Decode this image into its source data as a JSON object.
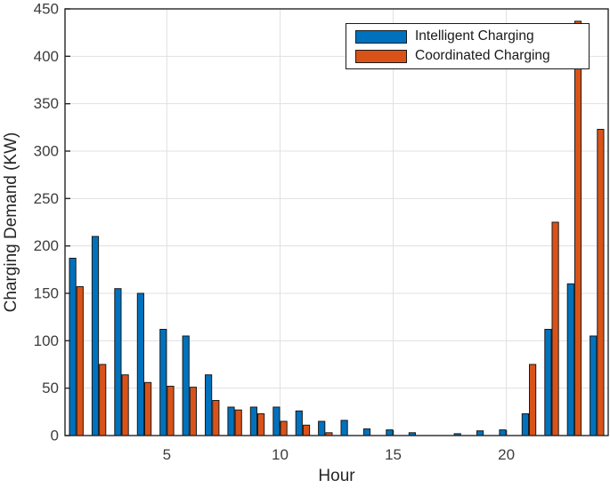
{
  "figure": {
    "background": "#ffffff",
    "axis_color": "#262626",
    "grid_color": "#e0e0e0",
    "bar_edge_color": "#1a1a1a",
    "tick_label_color": "#3d3d3d"
  },
  "legend": {
    "position": "top-right",
    "items": [
      {
        "label": "Intelligent Charging",
        "color": "#0072BD"
      },
      {
        "label": "Coordinated Charging",
        "color": "#D95319"
      }
    ]
  },
  "chart_data": {
    "type": "bar",
    "title": "",
    "xlabel": "Hour",
    "ylabel": "Charging Demand (KW)",
    "x": [
      1,
      2,
      3,
      4,
      5,
      6,
      7,
      8,
      9,
      10,
      11,
      12,
      13,
      14,
      15,
      16,
      17,
      18,
      19,
      20,
      21,
      22,
      23,
      24
    ],
    "series": [
      {
        "name": "Intelligent Charging",
        "color": "#0072BD",
        "values": [
          187,
          210,
          155,
          150,
          112,
          105,
          64,
          30,
          30,
          30,
          26,
          15,
          16,
          7,
          6,
          3,
          0,
          2,
          5,
          6,
          23,
          112,
          160,
          105
        ]
      },
      {
        "name": "Coordinated Charging",
        "color": "#D95319",
        "values": [
          157,
          75,
          64,
          56,
          52,
          51,
          37,
          27,
          23,
          15,
          11,
          3,
          0,
          0,
          0,
          0,
          0,
          0,
          0,
          0,
          75,
          225,
          437,
          323
        ]
      }
    ],
    "xlim": [
      0.5,
      24.5
    ],
    "ylim": [
      0,
      450
    ],
    "yticks": [
      0,
      50,
      100,
      150,
      200,
      250,
      300,
      350,
      400,
      450
    ],
    "xticks": [
      5,
      10,
      15,
      20
    ],
    "grid": true,
    "legend_position": "top-right"
  }
}
